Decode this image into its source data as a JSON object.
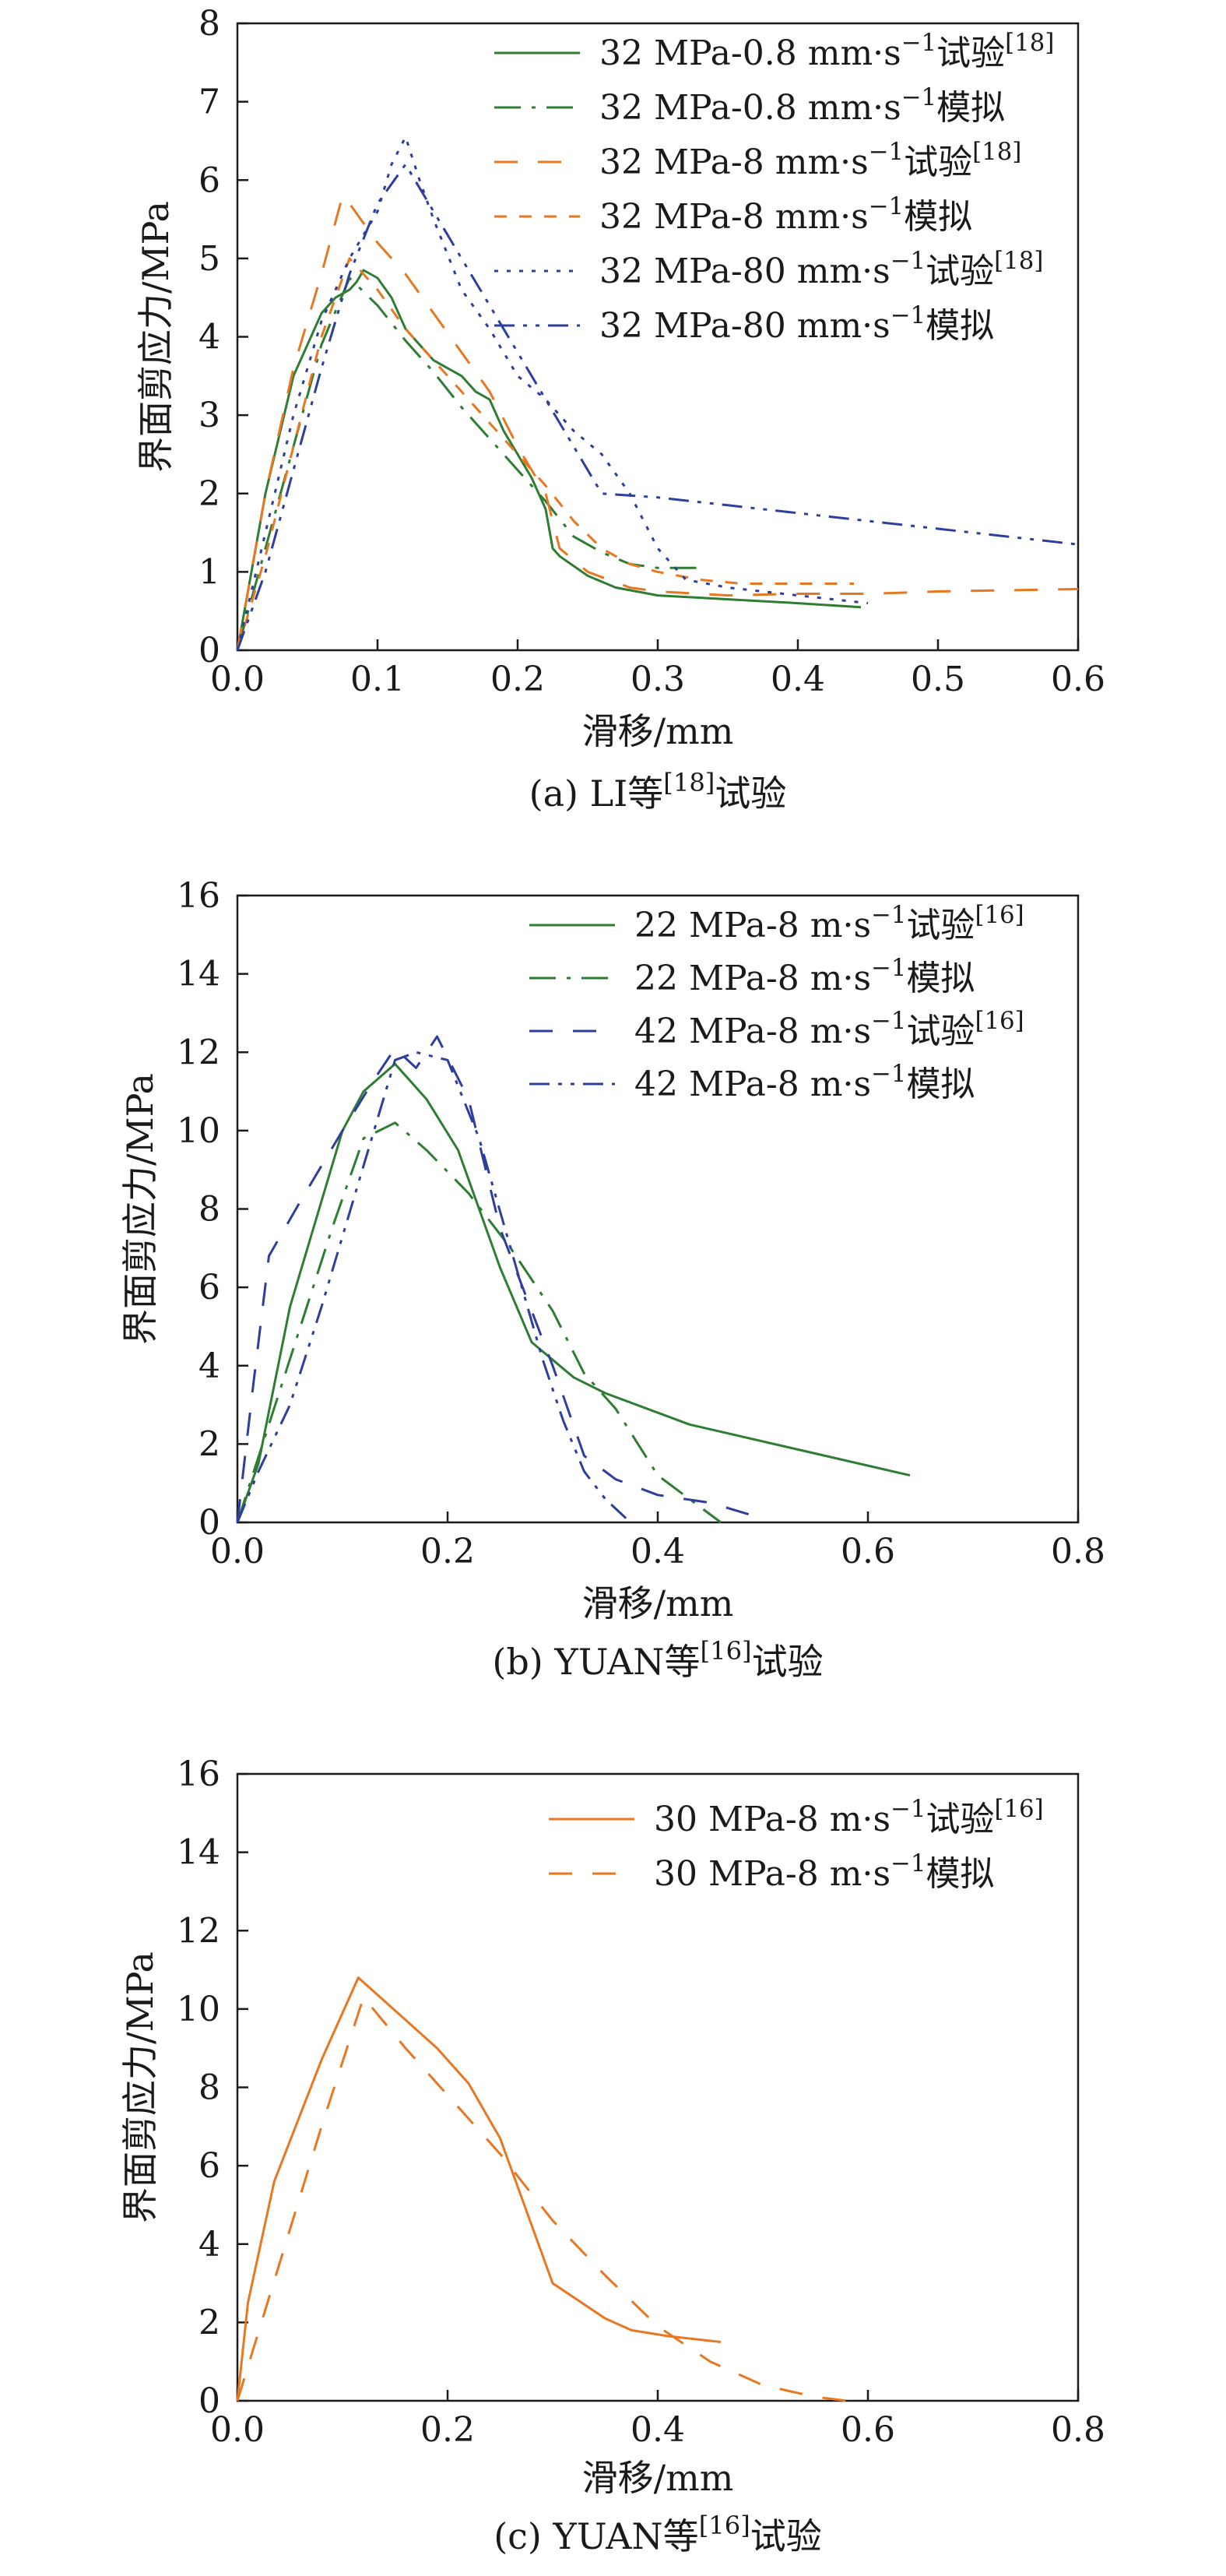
{
  "chart_data": [
    {
      "type": "line",
      "caption": "(a) LI等[18]试验",
      "xlabel": "滑移/mm",
      "ylabel": "界面剪应力/MPa",
      "xlim": [
        0,
        0.6
      ],
      "ylim": [
        0,
        8
      ],
      "xticks": [
        0.0,
        0.1,
        0.2,
        0.3,
        0.4,
        0.5,
        0.6
      ],
      "xtick_labels": [
        "0.0",
        "0.1",
        "0.2",
        "0.3",
        "0.4",
        "0.5",
        "0.6"
      ],
      "yticks": [
        0,
        1,
        2,
        3,
        4,
        5,
        6,
        7,
        8
      ],
      "ytick_labels": [
        "0",
        "1",
        "2",
        "3",
        "4",
        "5",
        "6",
        "7",
        "8"
      ],
      "legend_position": "top-right",
      "series": [
        {
          "name": "32 MPa-0.8 mm·s⁻¹试验[18]",
          "color": "#2e7d32",
          "dash": "solid",
          "x": [
            0,
            0.02,
            0.04,
            0.05,
            0.06,
            0.07,
            0.08,
            0.085,
            0.09,
            0.1,
            0.11,
            0.12,
            0.13,
            0.14,
            0.15,
            0.16,
            0.17,
            0.18,
            0.19,
            0.2,
            0.21,
            0.22,
            0.225,
            0.23,
            0.25,
            0.27,
            0.3,
            0.35,
            0.4,
            0.445
          ],
          "y": [
            0,
            2.0,
            3.5,
            3.9,
            4.3,
            4.5,
            4.6,
            4.7,
            4.85,
            4.75,
            4.5,
            4.1,
            3.9,
            3.7,
            3.6,
            3.5,
            3.3,
            3.2,
            2.8,
            2.5,
            2.2,
            1.8,
            1.3,
            1.2,
            0.95,
            0.8,
            0.7,
            0.65,
            0.6,
            0.55
          ]
        },
        {
          "name": "32 MPa-0.8 mm·s⁻¹模拟",
          "color": "#2e7d32",
          "dash": "dashdot",
          "x": [
            0,
            0.02,
            0.04,
            0.06,
            0.08,
            0.1,
            0.12,
            0.14,
            0.16,
            0.18,
            0.2,
            0.22,
            0.24,
            0.26,
            0.28,
            0.3,
            0.33
          ],
          "y": [
            0,
            1.3,
            2.6,
            3.9,
            4.75,
            4.4,
            3.95,
            3.55,
            3.1,
            2.7,
            2.3,
            1.9,
            1.45,
            1.25,
            1.1,
            1.05,
            1.05
          ]
        },
        {
          "name": "32 MPa-8 mm·s⁻¹试验[18]",
          "color": "#e87722",
          "dash": "longdash",
          "x": [
            0,
            0.02,
            0.04,
            0.06,
            0.075,
            0.08,
            0.1,
            0.12,
            0.14,
            0.16,
            0.18,
            0.2,
            0.22,
            0.23,
            0.25,
            0.28,
            0.3,
            0.35,
            0.4,
            0.45,
            0.5,
            0.6
          ],
          "y": [
            0,
            2.0,
            3.6,
            4.8,
            5.8,
            5.7,
            5.2,
            4.8,
            4.3,
            3.8,
            3.3,
            2.6,
            2.0,
            1.3,
            1.0,
            0.8,
            0.75,
            0.7,
            0.72,
            0.72,
            0.75,
            0.78
          ]
        },
        {
          "name": "32 MPa-8 mm·s⁻¹模拟",
          "color": "#e87722",
          "dash": "shortdash",
          "x": [
            0,
            0.02,
            0.04,
            0.06,
            0.08,
            0.1,
            0.12,
            0.14,
            0.16,
            0.18,
            0.2,
            0.22,
            0.24,
            0.26,
            0.28,
            0.3,
            0.33,
            0.36,
            0.4,
            0.44
          ],
          "y": [
            0,
            1.2,
            2.6,
            4.0,
            5.0,
            4.6,
            4.1,
            3.7,
            3.3,
            2.9,
            2.5,
            2.1,
            1.65,
            1.3,
            1.1,
            1.0,
            0.9,
            0.85,
            0.85,
            0.85
          ]
        },
        {
          "name": "32 MPa-80 mm·s⁻¹试验[18]",
          "color": "#2e3e9e",
          "dash": "dotted",
          "x": [
            0,
            0.02,
            0.04,
            0.06,
            0.08,
            0.1,
            0.11,
            0.12,
            0.13,
            0.14,
            0.16,
            0.18,
            0.2,
            0.22,
            0.24,
            0.26,
            0.28,
            0.3,
            0.32,
            0.35,
            0.4,
            0.45
          ],
          "y": [
            0,
            1.5,
            3.0,
            4.2,
            5.0,
            5.6,
            6.2,
            6.55,
            6.0,
            5.5,
            4.6,
            4.1,
            3.5,
            3.2,
            2.8,
            2.5,
            2.0,
            1.3,
            0.9,
            0.8,
            0.7,
            0.6
          ]
        },
        {
          "name": "32 MPa-80 mm·s⁻¹模拟",
          "color": "#2e3e9e",
          "dash": "dashdotdot",
          "x": [
            0,
            0.02,
            0.04,
            0.06,
            0.08,
            0.1,
            0.12,
            0.14,
            0.16,
            0.18,
            0.2,
            0.22,
            0.24,
            0.26,
            0.3,
            0.35,
            0.4,
            0.45,
            0.5,
            0.55,
            0.6
          ],
          "y": [
            0,
            1.0,
            2.3,
            3.6,
            4.8,
            5.7,
            6.2,
            5.6,
            5.0,
            4.4,
            3.8,
            3.2,
            2.6,
            2.0,
            1.95,
            1.85,
            1.75,
            1.65,
            1.55,
            1.45,
            1.35
          ]
        }
      ]
    },
    {
      "type": "line",
      "caption": "(b) YUAN等[16]试验",
      "xlabel": "滑移/mm",
      "ylabel": "界面剪应力/MPa",
      "xlim": [
        0,
        0.8
      ],
      "ylim": [
        0,
        16
      ],
      "xticks": [
        0.0,
        0.2,
        0.4,
        0.6,
        0.8
      ],
      "xtick_labels": [
        "0.0",
        "0.2",
        "0.4",
        "0.6",
        "0.8"
      ],
      "yticks": [
        0,
        2,
        4,
        6,
        8,
        10,
        12,
        14,
        16
      ],
      "ytick_labels": [
        "0",
        "2",
        "4",
        "6",
        "8",
        "10",
        "12",
        "14",
        "16"
      ],
      "legend_position": "top-right",
      "series": [
        {
          "name": "22 MPa-8 m·s⁻¹试验[16]",
          "color": "#2e7d32",
          "dash": "solid",
          "x": [
            0,
            0.02,
            0.05,
            0.1,
            0.12,
            0.15,
            0.18,
            0.21,
            0.25,
            0.28,
            0.32,
            0.35,
            0.43,
            0.64
          ],
          "y": [
            0,
            1.5,
            5.5,
            10.0,
            11.0,
            11.7,
            10.8,
            9.5,
            6.5,
            4.6,
            3.7,
            3.3,
            2.5,
            1.2
          ]
        },
        {
          "name": "22 MPa-8 m·s⁻¹模拟",
          "color": "#2e7d32",
          "dash": "dashdot",
          "x": [
            0,
            0.03,
            0.06,
            0.09,
            0.12,
            0.15,
            0.18,
            0.22,
            0.26,
            0.3,
            0.33,
            0.36,
            0.4,
            0.46
          ],
          "y": [
            0,
            2.5,
            5.0,
            7.5,
            9.8,
            10.2,
            9.5,
            8.4,
            7.0,
            5.4,
            3.8,
            2.9,
            1.2,
            0
          ]
        },
        {
          "name": "42 MPa-8 m·s⁻¹试验[16]",
          "color": "#2e3e9e",
          "dash": "longdash",
          "x": [
            0,
            0.015,
            0.03,
            0.06,
            0.1,
            0.13,
            0.15,
            0.17,
            0.19,
            0.22,
            0.25,
            0.3,
            0.33,
            0.36,
            0.4,
            0.45,
            0.5
          ],
          "y": [
            0,
            3.5,
            6.8,
            8.2,
            10.0,
            11.3,
            12.1,
            11.6,
            12.4,
            10.8,
            7.5,
            4.0,
            1.7,
            1.1,
            0.7,
            0.5,
            0.1
          ]
        },
        {
          "name": "42 MPa-8 m·s⁻¹模拟",
          "color": "#2e3e9e",
          "dash": "dashdotdot",
          "x": [
            0,
            0.02,
            0.05,
            0.08,
            0.11,
            0.13,
            0.15,
            0.17,
            0.2,
            0.23,
            0.26,
            0.29,
            0.31,
            0.33,
            0.35,
            0.37
          ],
          "y": [
            0,
            1.3,
            3.0,
            5.5,
            8.2,
            10.0,
            11.8,
            12.0,
            11.8,
            9.8,
            7.0,
            4.2,
            2.6,
            1.3,
            0.6,
            0.1
          ]
        }
      ]
    },
    {
      "type": "line",
      "caption": "(c) YUAN等[16]试验",
      "xlabel": "滑移/mm",
      "ylabel": "界面剪应力/MPa",
      "xlim": [
        0,
        0.8
      ],
      "ylim": [
        0,
        16
      ],
      "xticks": [
        0.0,
        0.2,
        0.4,
        0.6,
        0.8
      ],
      "xtick_labels": [
        "0.0",
        "0.2",
        "0.4",
        "0.6",
        "0.8"
      ],
      "yticks": [
        0,
        2,
        4,
        6,
        8,
        10,
        12,
        14,
        16
      ],
      "ytick_labels": [
        "0",
        "2",
        "4",
        "6",
        "8",
        "10",
        "12",
        "14",
        "16"
      ],
      "legend_position": "top-right",
      "series": [
        {
          "name": "30 MPa-8 m·s⁻¹试验[16]",
          "color": "#e87722",
          "dash": "solid",
          "x": [
            0,
            0.01,
            0.035,
            0.08,
            0.115,
            0.14,
            0.165,
            0.19,
            0.22,
            0.25,
            0.3,
            0.35,
            0.375,
            0.41,
            0.46
          ],
          "y": [
            0,
            2.5,
            5.6,
            8.7,
            10.8,
            10.2,
            9.6,
            9.0,
            8.1,
            6.7,
            3.0,
            2.1,
            1.8,
            1.65,
            1.5
          ]
        },
        {
          "name": "30 MPa-8 m·s⁻¹模拟",
          "color": "#e87722",
          "dash": "longdash",
          "x": [
            0,
            0.04,
            0.08,
            0.12,
            0.16,
            0.2,
            0.25,
            0.3,
            0.35,
            0.4,
            0.45,
            0.5,
            0.55,
            0.58
          ],
          "y": [
            0,
            3.5,
            7.0,
            10.3,
            9.0,
            7.8,
            6.3,
            4.6,
            3.2,
            1.9,
            1.0,
            0.4,
            0.1,
            0
          ]
        }
      ]
    }
  ]
}
